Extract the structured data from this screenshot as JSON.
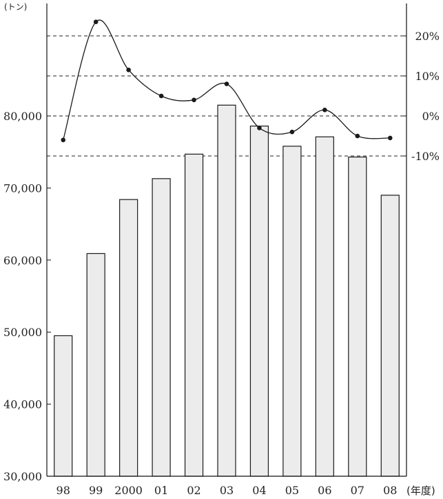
{
  "chart_data": {
    "type": "bar",
    "categories": [
      "98",
      "99",
      "2000",
      "01",
      "02",
      "03",
      "04",
      "05",
      "06",
      "07",
      "08"
    ],
    "series": [
      {
        "values": [
          49500,
          60900,
          68400,
          71300,
          74700,
          81500,
          78600,
          75800,
          77100,
          74300,
          69000
        ]
      },
      {
        "values": [
          -6,
          23.5,
          11.5,
          5,
          4,
          8,
          -3,
          -4,
          1.5,
          -5,
          -5.5
        ]
      }
    ],
    "ylim": [
      30000,
      92000
    ],
    "y2lim": [
      -36,
      31
    ],
    "yticks": [
      30000,
      40000,
      50000,
      60000,
      70000,
      80000
    ],
    "ytick_labels": [
      "30,000",
      "40,000",
      "50,000",
      "60,000",
      "70,000",
      "80,000"
    ],
    "y2ticks": [
      20,
      10,
      0,
      -10
    ],
    "y2tick_labels": [
      "20%",
      "10%",
      "0%",
      "-10%"
    ],
    "y_unit": "(トン)",
    "x_unit": "(年度)",
    "grid": "dashed horizontal at secondary-axis ticks",
    "colors": {
      "bar_fill": "#ececec",
      "bar_stroke": "#1a1a1a",
      "line": "#1a1a1a",
      "marker": "#1a1a1a",
      "grid": "#222222"
    }
  }
}
